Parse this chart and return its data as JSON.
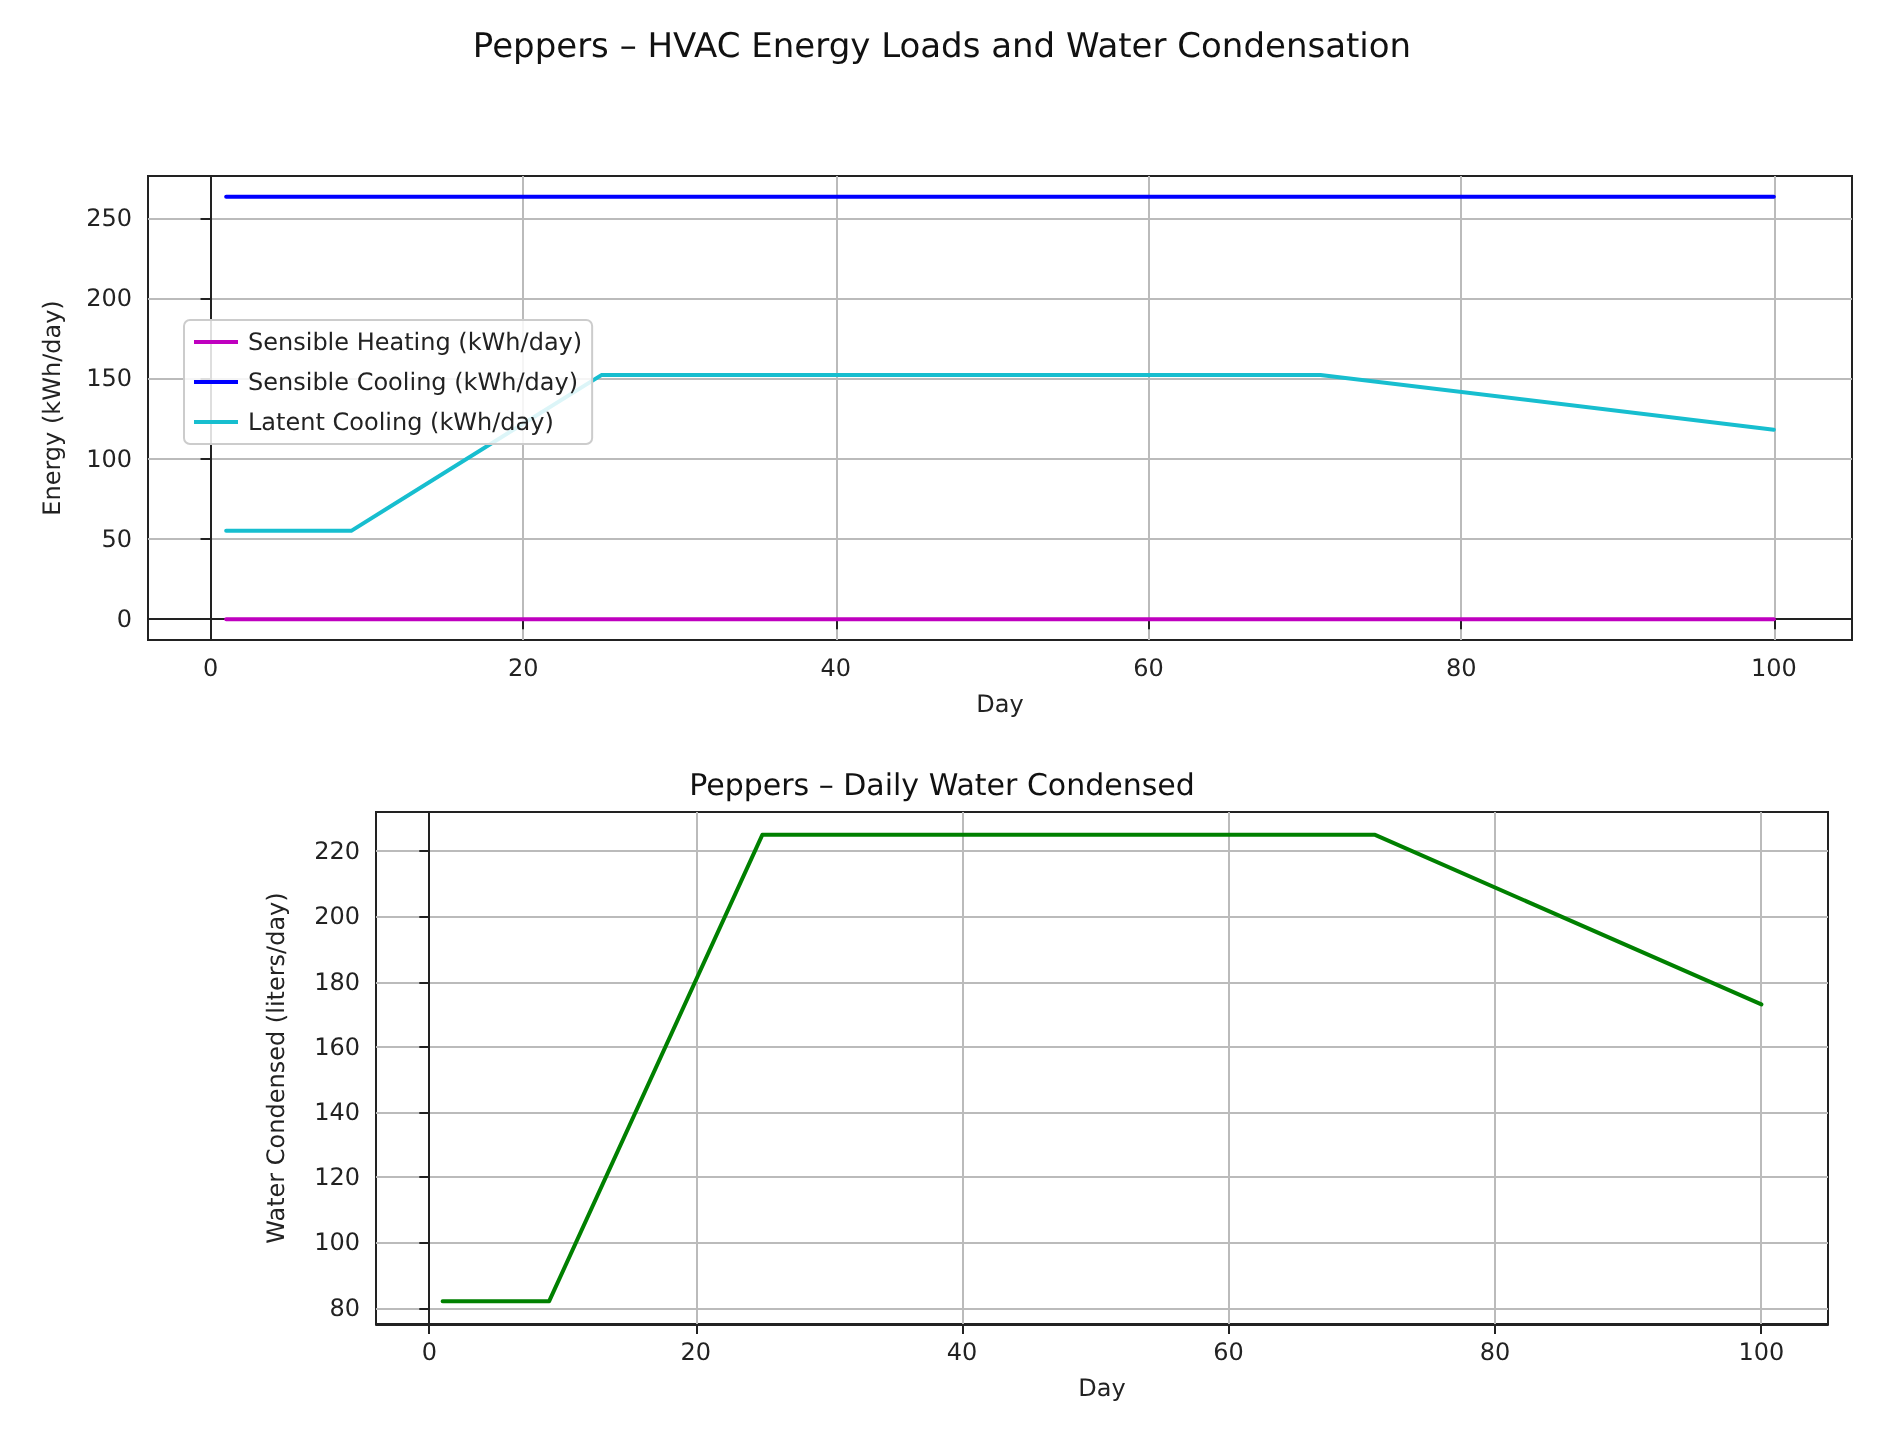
{
  "chart_data": [
    {
      "type": "line",
      "title": "Peppers – HVAC Energy Loads and Water Condensation",
      "xlabel": "Day",
      "ylabel": "Energy (kWh/day)",
      "x": [
        1,
        9,
        25,
        71,
        100
      ],
      "series": [
        {
          "name": "Sensible Heating (kWh/day)",
          "color": "#bf00bf",
          "values": [
            0,
            0,
            0,
            0,
            0
          ]
        },
        {
          "name": "Sensible Cooling (kWh/day)",
          "color": "#0000ff",
          "values": [
            263,
            263,
            263,
            263,
            263
          ]
        },
        {
          "name": "Latent Cooling (kWh/day)",
          "color": "#17becf",
          "values": [
            55,
            55,
            152,
            152,
            118
          ]
        }
      ],
      "xlim": [
        -4,
        105
      ],
      "xticks": [
        0,
        20,
        40,
        60,
        80,
        100
      ],
      "ylim": [
        -13,
        276
      ],
      "yticks": [
        0,
        50,
        100,
        150,
        200,
        250
      ],
      "grid": true,
      "legend": "left",
      "marker": "none",
      "line_style": "solid"
    },
    {
      "type": "line",
      "title": "Peppers – Daily Water Condensed",
      "xlabel": "Day",
      "ylabel": "Water Condensed (liters/day)",
      "x": [
        1,
        9,
        25,
        71,
        100
      ],
      "series": [
        {
          "color": "#008000",
          "values": [
            82,
            82,
            225,
            225,
            173
          ]
        }
      ],
      "xlim": [
        -4,
        105
      ],
      "xticks": [
        0,
        20,
        40,
        60,
        80,
        100
      ],
      "ylim": [
        75,
        232
      ],
      "yticks": [
        80,
        100,
        120,
        140,
        160,
        180,
        200,
        220
      ],
      "grid": true,
      "legend": false,
      "marker": "none",
      "line_style": "solid"
    }
  ]
}
